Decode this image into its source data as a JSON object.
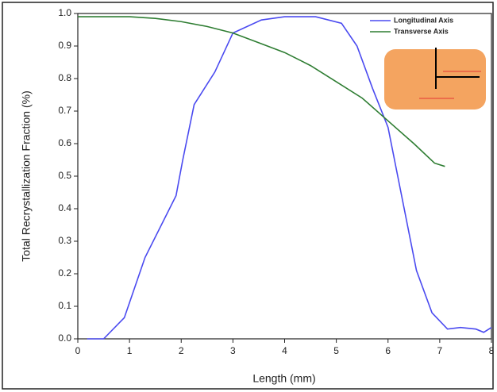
{
  "chart_data": {
    "type": "line",
    "x_label": "Length (mm)",
    "y_label": "Total Recrystallization Fraction (%)",
    "xlim": [
      0,
      8
    ],
    "xticks": [
      0,
      1,
      2,
      3,
      4,
      5,
      6,
      7,
      8
    ],
    "ylim": [
      0,
      1
    ],
    "yticks": [
      {
        "value": 0,
        "label": "0.0"
      },
      0.1,
      0.2,
      0.3,
      0.4,
      0.5,
      0.6,
      0.7,
      0.8,
      0.9,
      {
        "value": 1,
        "label": "1.0"
      }
    ],
    "legend": "upper right",
    "series": [
      {
        "name": "Longitudinal Axis",
        "color": "#4a4af0",
        "x": [
          0.18,
          0.5,
          0.9,
          1.3,
          1.9,
          2.03,
          2.25,
          2.65,
          3.0,
          3.55,
          4.0,
          4.6,
          5.1,
          5.4,
          5.7,
          6.0,
          6.25,
          6.55,
          6.85,
          7.15,
          7.4,
          7.7,
          7.85,
          8.0
        ],
        "values": [
          0,
          0,
          0.065,
          0.25,
          0.44,
          0.55,
          0.72,
          0.82,
          0.94,
          0.98,
          0.99,
          0.99,
          0.97,
          0.9,
          0.77,
          0.65,
          0.45,
          0.21,
          0.08,
          0.03,
          0.035,
          0.03,
          0.02,
          0.035
        ]
      },
      {
        "name": "Transverse Axis",
        "color": "#2e7d32",
        "x": [
          0,
          1,
          1.5,
          2,
          2.5,
          3,
          3.5,
          4,
          4.5,
          5,
          5.5,
          6,
          6.5,
          6.9,
          7.1
        ],
        "values": [
          0.99,
          0.99,
          0.985,
          0.975,
          0.96,
          0.94,
          0.91,
          0.88,
          0.84,
          0.79,
          0.74,
          0.67,
          0.6,
          0.54,
          0.53
        ]
      }
    ]
  }
}
